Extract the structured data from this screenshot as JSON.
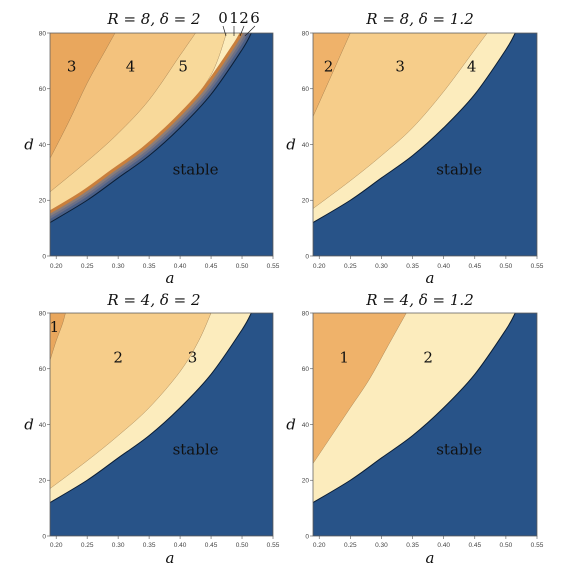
{
  "chart_data": [
    {
      "type": "contour",
      "title": "R = 8, δ = 2",
      "xlabel": "a",
      "ylabel": "d",
      "xlim": [
        0.19,
        0.55
      ],
      "ylim": [
        0,
        80
      ],
      "xticks": [
        "0.20",
        "0.25",
        "0.30",
        "0.35",
        "0.40",
        "0.45",
        "0.50",
        "0.55"
      ],
      "yticks": [
        "0",
        "20",
        "40",
        "60",
        "80"
      ],
      "stable_label": "stable",
      "boundary_d_at_a": [
        [
          0.19,
          12
        ],
        [
          0.25,
          20
        ],
        [
          0.3,
          28
        ],
        [
          0.35,
          36
        ],
        [
          0.4,
          46
        ],
        [
          0.45,
          58
        ],
        [
          0.5,
          74
        ],
        [
          0.515,
          80
        ]
      ],
      "regions": [
        {
          "label": "3",
          "color": "#e9a75d",
          "boundary": [
            [
              0.19,
              35
            ],
            [
              0.22,
              48
            ],
            [
              0.25,
              62
            ],
            [
              0.28,
              74
            ],
            [
              0.295,
              80
            ]
          ],
          "label_at": [
            0.225,
            68
          ]
        },
        {
          "label": "4",
          "color": "#f3c27d",
          "boundary": [
            [
              0.19,
              23
            ],
            [
              0.25,
              34
            ],
            [
              0.3,
              44
            ],
            [
              0.35,
              56
            ],
            [
              0.4,
              72
            ],
            [
              0.425,
              80
            ]
          ],
          "label_at": [
            0.32,
            68
          ]
        },
        {
          "label": "5",
          "color": "#f8d99a",
          "boundary": [
            [
              0.19,
              14
            ],
            [
              0.25,
              22
            ],
            [
              0.3,
              30
            ],
            [
              0.35,
              38
            ],
            [
              0.4,
              50
            ],
            [
              0.45,
              65
            ],
            [
              0.475,
              80
            ]
          ],
          "label_at": [
            0.405,
            68
          ]
        }
      ],
      "band_labels": [
        "0",
        "1",
        "2",
        "6"
      ],
      "band_colors": [
        "#c97f3c",
        "#8a7d7a",
        "#6b6f86",
        "#4b5f86"
      ]
    },
    {
      "type": "contour",
      "title": "R = 8, δ = 1.2",
      "xlabel": "a",
      "ylabel": "d",
      "xlim": [
        0.19,
        0.55
      ],
      "ylim": [
        0,
        80
      ],
      "xticks": [
        "0.20",
        "0.25",
        "0.30",
        "0.35",
        "0.40",
        "0.45",
        "0.50",
        "0.55"
      ],
      "yticks": [
        "0",
        "20",
        "40",
        "60",
        "80"
      ],
      "stable_label": "stable",
      "boundary_d_at_a": [
        [
          0.19,
          12
        ],
        [
          0.25,
          20
        ],
        [
          0.3,
          28
        ],
        [
          0.35,
          36
        ],
        [
          0.4,
          46
        ],
        [
          0.45,
          58
        ],
        [
          0.5,
          74
        ],
        [
          0.515,
          80
        ]
      ],
      "regions": [
        {
          "label": "2",
          "color": "#efb26a",
          "boundary": [
            [
              0.19,
              50
            ],
            [
              0.21,
              60
            ],
            [
              0.23,
              70
            ],
            [
              0.25,
              80
            ]
          ],
          "label_at": [
            0.215,
            68
          ]
        },
        {
          "label": "3",
          "color": "#f6cd8a",
          "boundary": [
            [
              0.19,
              17
            ],
            [
              0.25,
              27
            ],
            [
              0.3,
              36
            ],
            [
              0.35,
              46
            ],
            [
              0.4,
              59
            ],
            [
              0.45,
              74
            ],
            [
              0.47,
              80
            ]
          ],
          "label_at": [
            0.33,
            68
          ]
        },
        {
          "label": "4",
          "color": "#fcecbd",
          "boundary": null,
          "label_at": [
            0.445,
            68
          ]
        }
      ]
    },
    {
      "type": "contour",
      "title": "R = 4, δ = 2",
      "xlabel": "a",
      "ylabel": "d",
      "xlim": [
        0.19,
        0.55
      ],
      "ylim": [
        0,
        80
      ],
      "xticks": [
        "0.20",
        "0.25",
        "0.30",
        "0.35",
        "0.40",
        "0.45",
        "0.50",
        "0.55"
      ],
      "yticks": [
        "0",
        "20",
        "40",
        "60",
        "80"
      ],
      "stable_label": "stable",
      "boundary_d_at_a": [
        [
          0.19,
          12
        ],
        [
          0.25,
          20
        ],
        [
          0.3,
          28
        ],
        [
          0.35,
          36
        ],
        [
          0.4,
          46
        ],
        [
          0.45,
          58
        ],
        [
          0.5,
          74
        ],
        [
          0.515,
          80
        ]
      ],
      "regions": [
        {
          "label": "1",
          "color": "#e9a75d",
          "boundary": [
            [
              0.19,
              63
            ],
            [
              0.2,
              70
            ],
            [
              0.21,
              76
            ],
            [
              0.215,
              80
            ]
          ],
          "label_at": [
            0.197,
            75
          ]
        },
        {
          "label": "2",
          "color": "#f6cd8a",
          "boundary": [
            [
              0.19,
              17
            ],
            [
              0.25,
              27
            ],
            [
              0.3,
              36
            ],
            [
              0.35,
              46
            ],
            [
              0.4,
              59
            ],
            [
              0.43,
              70
            ],
            [
              0.45,
              80
            ]
          ],
          "label_at": [
            0.3,
            64
          ]
        },
        {
          "label": "3",
          "color": "#fcecbd",
          "boundary": null,
          "label_at": [
            0.42,
            64
          ]
        }
      ]
    },
    {
      "type": "contour",
      "title": "R = 4, δ = 1.2",
      "xlabel": "a",
      "ylabel": "d",
      "xlim": [
        0.19,
        0.55
      ],
      "ylim": [
        0,
        80
      ],
      "xticks": [
        "0.20",
        "0.25",
        "0.30",
        "0.35",
        "0.40",
        "0.45",
        "0.50",
        "0.55"
      ],
      "yticks": [
        "0",
        "20",
        "40",
        "60",
        "80"
      ],
      "stable_label": "stable",
      "boundary_d_at_a": [
        [
          0.19,
          12
        ],
        [
          0.25,
          20
        ],
        [
          0.3,
          28
        ],
        [
          0.35,
          36
        ],
        [
          0.4,
          46
        ],
        [
          0.45,
          58
        ],
        [
          0.5,
          74
        ],
        [
          0.515,
          80
        ]
      ],
      "regions": [
        {
          "label": "1",
          "color": "#efb26a",
          "boundary": [
            [
              0.19,
              26
            ],
            [
              0.22,
              36
            ],
            [
              0.25,
              46
            ],
            [
              0.28,
              56
            ],
            [
              0.31,
              68
            ],
            [
              0.34,
              80
            ]
          ],
          "label_at": [
            0.24,
            64
          ]
        },
        {
          "label": "2",
          "color": "#fcecbd",
          "boundary": null,
          "label_at": [
            0.375,
            64
          ]
        }
      ]
    }
  ],
  "colors": {
    "stable": "#285388",
    "lightest": "#fcecbd",
    "frame": "#666666"
  }
}
